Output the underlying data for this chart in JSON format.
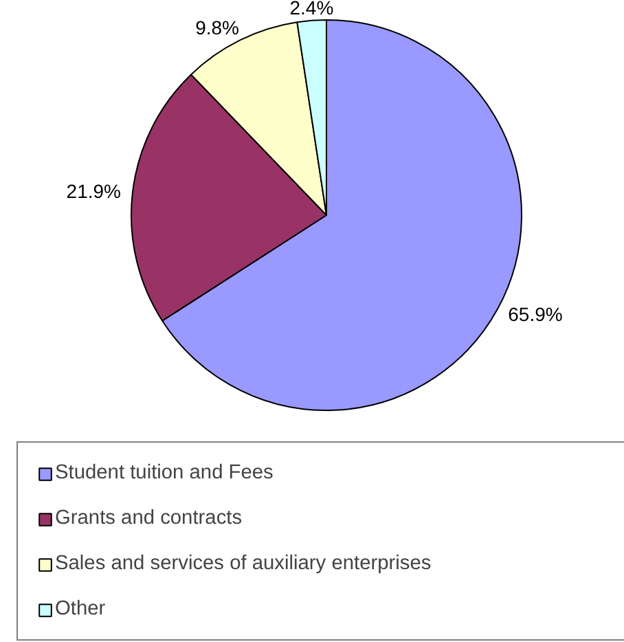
{
  "chart_data": {
    "type": "pie",
    "categories": [
      "Student tuition and Fees",
      "Grants and contracts",
      "Sales and services of auxiliary enterprises",
      "Other"
    ],
    "values": [
      65.9,
      21.9,
      9.8,
      2.4
    ],
    "colors": [
      "#9999ff",
      "#993366",
      "#ffffcc",
      "#ccffff"
    ],
    "value_labels": [
      "65.9%",
      "21.9%",
      "9.8%",
      "2.4%"
    ],
    "legend": "bottom"
  }
}
